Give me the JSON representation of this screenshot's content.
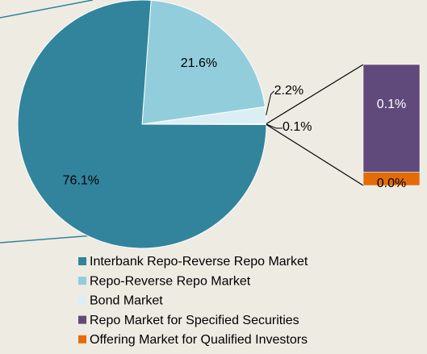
{
  "chart_data": {
    "type": "pie-of-bar",
    "categories": [
      "Interbank Repo-Reverse Repo Market",
      "Repo-Reverse Repo Market",
      "Bond Market",
      "Repo Market for Specified Securities",
      "Offering Market for Qualified Investors"
    ],
    "values": [
      76.1,
      21.6,
      2.2,
      0.089,
      0.011
    ],
    "value_labels": [
      "76.1%",
      "21.6%",
      "2.2%",
      "0.1%",
      "0.0%"
    ],
    "colors": [
      "#31849b",
      "#92cddc",
      "#dbeef4",
      "#604a7b",
      "#e36c09"
    ],
    "other": {
      "value": 0.1,
      "value_label": "0.1%"
    },
    "legend": "bottom"
  }
}
